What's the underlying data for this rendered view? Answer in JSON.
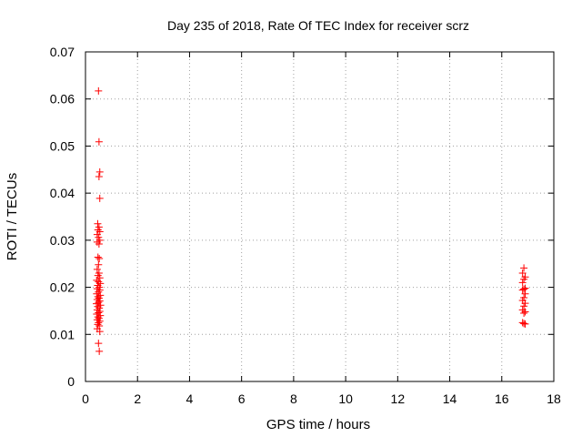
{
  "chart_data": {
    "type": "scatter",
    "title": "Day 235 of 2018, Rate Of TEC Index for receiver scrz",
    "xlabel": "GPS time / hours",
    "ylabel": "ROTI / TECUs",
    "xlim": [
      0,
      18
    ],
    "ylim": [
      0,
      0.07
    ],
    "x_ticks": [
      "0",
      "2",
      "4",
      "6",
      "8",
      "10",
      "12",
      "14",
      "16",
      "18"
    ],
    "y_ticks": [
      "0",
      "0.01",
      "0.02",
      "0.03",
      "0.04",
      "0.05",
      "0.06",
      "0.07"
    ],
    "x_tick_values": [
      0,
      2,
      4,
      6,
      8,
      10,
      12,
      14,
      16,
      18
    ],
    "y_tick_values": [
      0,
      0.01,
      0.02,
      0.03,
      0.04,
      0.05,
      0.06,
      0.07
    ],
    "grid": true,
    "marker": "+",
    "marker_color": "#ff0000",
    "series": [
      {
        "points": [
          [
            0.5,
            0.0617
          ],
          [
            0.52,
            0.0509
          ],
          [
            0.55,
            0.0445
          ],
          [
            0.52,
            0.0435
          ],
          [
            0.55,
            0.0389
          ],
          [
            0.47,
            0.0335
          ],
          [
            0.52,
            0.0328
          ],
          [
            0.48,
            0.0322
          ],
          [
            0.55,
            0.0318
          ],
          [
            0.45,
            0.0312
          ],
          [
            0.5,
            0.0306
          ],
          [
            0.55,
            0.03
          ],
          [
            0.45,
            0.0296
          ],
          [
            0.52,
            0.0292
          ],
          [
            0.48,
            0.0264
          ],
          [
            0.53,
            0.0261
          ],
          [
            0.5,
            0.0248
          ],
          [
            0.45,
            0.0238
          ],
          [
            0.52,
            0.023
          ],
          [
            0.48,
            0.0225
          ],
          [
            0.55,
            0.022
          ],
          [
            0.43,
            0.0215
          ],
          [
            0.5,
            0.0212
          ],
          [
            0.57,
            0.0208
          ],
          [
            0.47,
            0.0204
          ],
          [
            0.53,
            0.02
          ],
          [
            0.45,
            0.0197
          ],
          [
            0.55,
            0.0194
          ],
          [
            0.5,
            0.019
          ],
          [
            0.43,
            0.0186
          ],
          [
            0.57,
            0.0183
          ],
          [
            0.48,
            0.018
          ],
          [
            0.52,
            0.0177
          ],
          [
            0.45,
            0.0174
          ],
          [
            0.55,
            0.0171
          ],
          [
            0.5,
            0.0168
          ],
          [
            0.42,
            0.0165
          ],
          [
            0.58,
            0.0162
          ],
          [
            0.47,
            0.0159
          ],
          [
            0.53,
            0.0156
          ],
          [
            0.45,
            0.0152
          ],
          [
            0.55,
            0.0149
          ],
          [
            0.5,
            0.0146
          ],
          [
            0.43,
            0.0143
          ],
          [
            0.57,
            0.014
          ],
          [
            0.48,
            0.0137
          ],
          [
            0.52,
            0.0134
          ],
          [
            0.45,
            0.0131
          ],
          [
            0.55,
            0.0128
          ],
          [
            0.5,
            0.0125
          ],
          [
            0.47,
            0.0121
          ],
          [
            0.53,
            0.0118
          ],
          [
            0.45,
            0.0112
          ],
          [
            0.55,
            0.0106
          ],
          [
            0.5,
            0.0081
          ],
          [
            0.53,
            0.0064
          ]
        ]
      },
      {
        "points": [
          [
            16.85,
            0.0241
          ],
          [
            16.8,
            0.023
          ],
          [
            16.9,
            0.0222
          ],
          [
            16.85,
            0.0217
          ],
          [
            16.8,
            0.021
          ],
          [
            16.9,
            0.0198
          ],
          [
            16.85,
            0.0196
          ],
          [
            16.8,
            0.0194
          ],
          [
            16.9,
            0.0186
          ],
          [
            16.85,
            0.0178
          ],
          [
            16.8,
            0.0172
          ],
          [
            16.9,
            0.0166
          ],
          [
            16.85,
            0.016
          ],
          [
            16.8,
            0.0152
          ],
          [
            16.9,
            0.0148
          ],
          [
            16.85,
            0.0145
          ],
          [
            16.8,
            0.0125
          ],
          [
            16.9,
            0.0122
          ],
          [
            16.85,
            0.0123
          ]
        ]
      }
    ]
  }
}
